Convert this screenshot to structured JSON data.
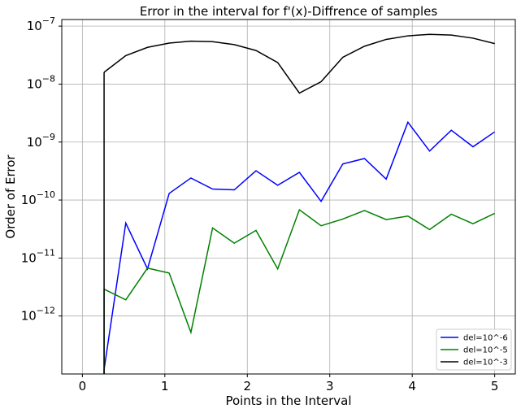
{
  "chart_data": {
    "type": "line",
    "title": "Error in the interval for f'(x)-Diffrence of samples",
    "xlabel": "Points in the Interval",
    "ylabel": "Order of Error",
    "yscale": "log",
    "xlim": [
      -0.25,
      5.25
    ],
    "ylim": [
      1e-13,
      1.3e-07
    ],
    "xticks": [
      0,
      1,
      2,
      3,
      4,
      5
    ],
    "xtick_labels": [
      "0",
      "1",
      "2",
      "3",
      "4",
      "5"
    ],
    "yticks": [
      1e-12,
      1e-11,
      1e-10,
      1e-09,
      1e-08,
      1e-07
    ],
    "ytick_labels": [
      {
        "base": "10",
        "exp": "−12"
      },
      {
        "base": "10",
        "exp": "−11"
      },
      {
        "base": "10",
        "exp": "−10"
      },
      {
        "base": "10",
        "exp": "−9"
      },
      {
        "base": "10",
        "exp": "−8"
      },
      {
        "base": "10",
        "exp": "−7"
      }
    ],
    "grid": true,
    "legend_position": "lower-right",
    "x": [
      0.2632,
      0.5263,
      0.7895,
      1.0526,
      1.3158,
      1.5789,
      1.8421,
      2.1053,
      2.3684,
      2.6316,
      2.8947,
      3.1579,
      3.4211,
      3.6842,
      3.9474,
      4.2105,
      4.4737,
      4.7368,
      5.0
    ],
    "series": [
      {
        "name": "del=10^-6",
        "color": "#0000ff",
        "values": [
          1.2e-13,
          4e-11,
          6.5e-12,
          1.3e-10,
          2.4e-10,
          1.55e-10,
          1.5e-10,
          3.2e-10,
          1.8e-10,
          3e-10,
          9.5e-11,
          4.2e-10,
          5.2e-10,
          2.3e-10,
          2.2e-09,
          7e-10,
          1.6e-09,
          8.3e-10,
          1.5e-09
        ]
      },
      {
        "name": "del=10^-5",
        "color": "#008000",
        "values": [
          2.9e-12,
          1.9e-12,
          6.7e-12,
          5.5e-12,
          5.2e-13,
          3.3e-11,
          1.8e-11,
          3e-11,
          6.5e-12,
          6.8e-11,
          3.6e-11,
          4.7e-11,
          6.6e-11,
          4.6e-11,
          5.3e-11,
          3.1e-11,
          5.7e-11,
          3.9e-11,
          5.9e-11
        ]
      },
      {
        "name": "del=10^-3",
        "color": "#000000",
        "values": [
          1.6e-08,
          3.1e-08,
          4.3e-08,
          5.1e-08,
          5.5e-08,
          5.4e-08,
          4.8e-08,
          3.8e-08,
          2.35e-08,
          7e-09,
          1.1e-08,
          2.9e-08,
          4.5e-08,
          5.9e-08,
          6.8e-08,
          7.2e-08,
          7e-08,
          6.2e-08,
          5e-08
        ]
      }
    ]
  }
}
